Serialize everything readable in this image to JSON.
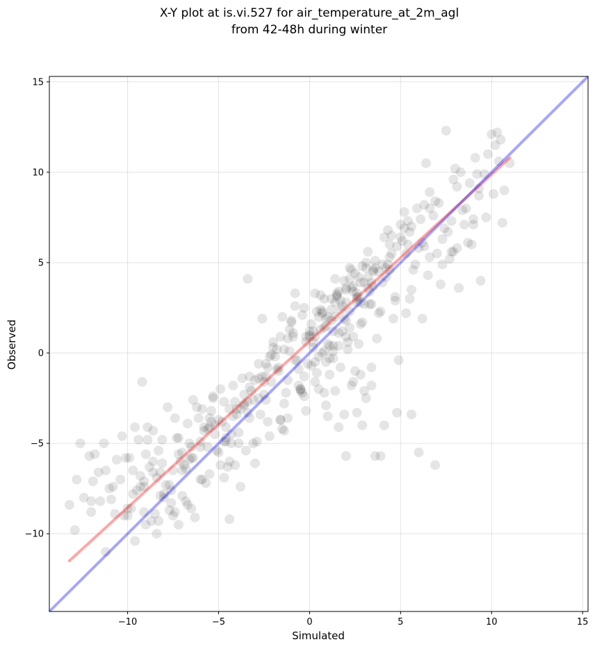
{
  "chart_data": {
    "type": "scatter",
    "title_line1": "X-Y plot at is.vi.527 for air_temperature_at_2m_agl",
    "title_line2": "from 42-48h during winter",
    "xlabel": "Simulated",
    "ylabel": "Observed",
    "xlim": [
      -14.3,
      15.3
    ],
    "ylim": [
      -14.3,
      15.3
    ],
    "xticks": [
      -10,
      -5,
      0,
      5,
      10,
      15
    ],
    "yticks": [
      -10,
      -5,
      0,
      5,
      10,
      15
    ],
    "xtick_labels": [
      "−10",
      "−5",
      "0",
      "5",
      "10",
      "15"
    ],
    "ytick_labels": [
      "−10",
      "−5",
      "0",
      "5",
      "10",
      "15"
    ],
    "grid": true,
    "point_color": "#000000",
    "point_opacity": 0.1,
    "regression_line": {
      "color": "#ff0000",
      "opacity": 0.35,
      "x": [
        -13.2,
        11.0
      ],
      "y": [
        -11.5,
        10.8
      ]
    },
    "identity_line": {
      "color": "#0000ff",
      "opacity": 0.35,
      "x": [
        -14.3,
        15.3
      ],
      "y": [
        -14.3,
        15.3
      ]
    },
    "series": [
      {
        "x": [
          -13.2,
          -12.9,
          -12.6,
          -12.4,
          -12.1,
          -11.9,
          -11.6,
          -11.3,
          -11.0,
          -10.6,
          -10.3,
          -10.0,
          -9.7,
          -9.4,
          -9.1,
          -8.8,
          -8.6,
          -8.3,
          -8.0,
          -7.8,
          -7.5,
          -7.2,
          -7.0,
          -6.7,
          -6.4,
          -6.1,
          -5.9,
          -5.6,
          -5.3,
          -5.0,
          -4.8,
          -4.5,
          -4.2,
          -3.9,
          -3.7,
          -3.4,
          -3.1,
          -2.8,
          -2.5,
          -2.2,
          -2.0,
          -1.7,
          -1.4,
          -1.1,
          -0.8,
          -0.5,
          -0.3,
          0.0,
          0.3,
          0.6,
          0.9,
          1.1,
          1.4,
          1.7,
          2.0,
          2.3,
          2.6,
          2.9,
          3.2,
          3.5,
          3.8,
          4.1,
          4.4,
          4.7,
          5.0,
          5.3,
          5.6,
          5.9,
          6.2,
          6.5,
          6.9,
          7.3,
          7.7,
          8.1,
          8.5,
          8.9,
          9.3,
          9.7,
          10.1,
          10.4,
          10.7,
          11.0,
          -12.8,
          -12.0,
          -11.2,
          -11.8,
          -10.9,
          -10.2,
          -9.9,
          -9.1,
          -8.9,
          -8.2,
          -7.6,
          -7.3,
          -6.6,
          -6.2,
          -5.7,
          -5.2,
          -4.9,
          -4.4,
          -4.0,
          -3.3,
          -2.9,
          -2.4,
          -1.9,
          -1.6,
          -1.2,
          -0.9,
          -0.4,
          0.1,
          0.5,
          0.8,
          1.2,
          1.6,
          1.9,
          2.2,
          2.7,
          3.1,
          3.4,
          3.9,
          4.3,
          4.8,
          5.2,
          5.7,
          6.1,
          6.6,
          7.1,
          7.6,
          8.0,
          8.6,
          9.2,
          9.8,
          10.3,
          -11.5,
          -10.7,
          -9.5,
          -8.7,
          -7.9,
          -7.1,
          -6.8,
          -6.0,
          -5.5,
          -4.6,
          -4.1,
          -3.5,
          -2.7,
          -2.1,
          -1.5,
          -0.7,
          -0.2,
          0.4,
          1.0,
          1.3,
          1.8,
          2.4,
          2.8,
          3.3,
          3.7,
          4.2,
          4.6,
          5.1,
          5.5,
          6.0,
          6.8,
          7.4,
          7.9,
          8.4,
          9.0,
          9.6,
          10.2,
          -9.6,
          -9.0,
          -8.4,
          -7.7,
          -6.9,
          -6.3,
          -5.8,
          -5.4,
          -4.7,
          -4.3,
          -3.8,
          -3.2,
          -2.6,
          -2.3,
          -1.8,
          -1.3,
          -1.0,
          -0.6,
          0.2,
          0.7,
          1.1,
          1.5,
          2.1,
          2.5,
          3.0,
          3.6,
          4.0,
          4.5,
          5.4,
          5.8,
          6.3,
          7.0,
          7.8,
          8.3,
          8.8,
          -10.1,
          -9.3,
          -8.1,
          -7.4,
          -6.5,
          -5.1,
          -4.4,
          -3.6,
          -3.0,
          -2.4,
          -1.6,
          -0.9,
          -0.1,
          0.6,
          1.4,
          2.0,
          2.7,
          3.5,
          4.3,
          5.2,
          6.4,
          7.5,
          0.1,
          0.4,
          0.8,
          1.0,
          1.2,
          1.5,
          1.8,
          2.1,
          2.4,
          2.7,
          3.0,
          3.3,
          2.9,
          2.6,
          2.2,
          1.7,
          1.3,
          0.9,
          0.5,
          -0.2,
          -11.2,
          -10.0,
          -8.9,
          -8.4,
          -7.4,
          -6.6,
          -5.3,
          -4.7,
          -3.9,
          -3.3,
          -2.5,
          -1.4,
          -0.5,
          0.3,
          1.6,
          2.5,
          3.6,
          4.9,
          6.6,
          7.9,
          9.1,
          -12.0,
          -10.8,
          -9.8,
          -9.2,
          -8.6,
          -7.0,
          -6.4,
          -5.9,
          -5.0,
          -4.1,
          -3.6,
          -2.0,
          -1.2,
          -0.3,
          1.0,
          2.3,
          3.1,
          4.1,
          5.6,
          6.9,
          8.7,
          10.0,
          0.5,
          1.1,
          1.9,
          2.6,
          3.2,
          2.2,
          1.4,
          0.7,
          0.0,
          -0.6,
          1.7,
          2.8,
          3.4,
          2.0,
          1.2,
          0.3,
          -0.8,
          -1.5,
          -2.6,
          -3.4,
          -4.6,
          -5.6,
          -6.8,
          -7.7,
          -8.5,
          -9.6,
          -8.0,
          -7.2,
          -6.0,
          -5.5,
          -4.3,
          -3.0,
          -2.1,
          0.9,
          1.9,
          2.9,
          3.9,
          4.8,
          6.0,
          7.3,
          8.2,
          9.4,
          10.6,
          -9.0,
          -8.3,
          -7.5,
          -6.7,
          -5.8,
          -4.9,
          -3.8,
          -2.8,
          -1.7,
          0.2,
          1.3,
          2.4,
          3.4,
          4.4,
          5.3,
          6.2,
          7.2,
          8.1,
          9.0,
          -5.2,
          -4.6,
          -4.0,
          -3.4,
          -2.8,
          -2.2,
          -1.6,
          -1.0,
          -0.4,
          0.2,
          0.8,
          1.4,
          2.0,
          2.6,
          3.2,
          3.8,
          4.4,
          5.0,
          5.6,
          -4.7,
          -4.2,
          -3.6,
          -3.1,
          -2.4,
          -1.8,
          -1.1,
          -0.2,
          0.6,
          1.5,
          2.3,
          3.1,
          4.0,
          4.7,
          5.5,
          6.3,
          -10.4,
          -9.7,
          -9.1,
          -8.6,
          -8.1,
          -7.6,
          -7.0,
          -6.5,
          -6.0,
          -5.4,
          0.0,
          0.7,
          1.3,
          2.0,
          2.8,
          3.6,
          4.5,
          5.4,
          6.6,
          7.8,
          9.3,
          10.5,
          -1.4,
          -0.8,
          -0.3,
          0.3,
          0.9,
          1.6,
          2.2,
          2.8,
          3.5,
          4.2,
          2.0,
          2.6,
          3.0,
          3.4,
          2.4,
          1.6,
          0.8,
          -0.5,
          -1.2,
          -2.3,
          -3.3,
          -4.4,
          -5.5,
          -6.5,
          -7.2,
          -8.2,
          -9.3
        ],
        "y": [
          -8.4,
          -9.8,
          -5.0,
          -8.0,
          -5.7,
          -7.1,
          -6.6,
          -5.0,
          -7.5,
          -5.9,
          -4.6,
          -8.6,
          -6.5,
          -4.8,
          -8.8,
          -6.3,
          -4.3,
          -5.4,
          -7.8,
          -3.0,
          -6.5,
          -4.7,
          -7.9,
          -3.9,
          -5.8,
          -3.6,
          -7.0,
          -4.2,
          -2.5,
          -5.5,
          -3.8,
          -6.3,
          -1.8,
          -4.4,
          -1.4,
          -3.3,
          -5.0,
          -0.6,
          -2.3,
          -4.6,
          0.6,
          -1.0,
          -2.8,
          1.3,
          -0.4,
          -2.0,
          2.5,
          0.9,
          -1.6,
          3.2,
          1.5,
          -0.3,
          4.1,
          2.4,
          0.9,
          4.6,
          3.1,
          1.7,
          5.6,
          3.7,
          2.2,
          6.4,
          4.6,
          2.9,
          7.1,
          5.5,
          3.5,
          8.0,
          6.1,
          4.3,
          8.4,
          6.3,
          5.2,
          9.2,
          7.1,
          6.0,
          8.7,
          7.5,
          8.8,
          10.6,
          9.0,
          10.5,
          -7.0,
          -8.8,
          -6.5,
          -5.6,
          -8.1,
          -9.0,
          -5.8,
          -7.4,
          -4.1,
          -6.6,
          -8.3,
          -4.7,
          -5.9,
          -3.0,
          -7.2,
          -4.0,
          -2.0,
          -6.0,
          -3.4,
          -1.3,
          -4.9,
          -2.6,
          -0.2,
          -3.7,
          -1.5,
          0.9,
          -2.2,
          -0.7,
          2.0,
          0.1,
          3.0,
          1.1,
          4.0,
          2.3,
          3.1,
          5.0,
          3.9,
          2.3,
          4.9,
          5.9,
          6.9,
          4.6,
          7.4,
          5.3,
          8.3,
          6.7,
          10.2,
          8.0,
          9.9,
          11.0,
          12.2,
          -8.2,
          -8.9,
          -7.6,
          -9.3,
          -7.3,
          -6.0,
          -8.2,
          -5.2,
          -6.7,
          -4.9,
          -2.7,
          -5.4,
          -3.4,
          -1.6,
          -4.2,
          -0.4,
          0.6,
          -1.1,
          2.0,
          0.4,
          1.2,
          3.4,
          1.6,
          2.7,
          0.8,
          4.2,
          1.9,
          6.2,
          3.0,
          5.8,
          7.6,
          6.9,
          5.6,
          7.9,
          7.1,
          9.9,
          11.5,
          -4.1,
          -5.6,
          -6.9,
          -7.3,
          -6.2,
          -9.1,
          -4.3,
          -3.2,
          -2.7,
          -5.0,
          -7.4,
          -2.1,
          -1.3,
          -3.8,
          0.2,
          -2.2,
          1.8,
          -0.9,
          0.3,
          2.2,
          -1.2,
          3.1,
          0.6,
          4.4,
          2.7,
          5.1,
          3.9,
          6.5,
          7.3,
          4.9,
          8.2,
          5.5,
          7.3,
          10.0,
          9.4,
          -5.8,
          -6.8,
          -4.8,
          -3.6,
          -8.6,
          -5.4,
          -9.2,
          -2.8,
          -6.1,
          -0.6,
          -3.7,
          1.1,
          -0.6,
          2.4,
          -2.1,
          3.6,
          0.5,
          4.6,
          6.8,
          7.8,
          10.5,
          12.3,
          1.6,
          2.3,
          3.0,
          0.5,
          1.8,
          3.3,
          2.6,
          0.2,
          3.7,
          4.2,
          3.9,
          3.4,
          4.8,
          2.8,
          1.4,
          2.9,
          0.1,
          -0.5,
          -2.0,
          -3.2,
          -11.0,
          -9.0,
          -4.8,
          -10.0,
          -8.8,
          -5.0,
          -2.4,
          -6.9,
          -5.0,
          -3.6,
          -1.6,
          -4.3,
          -2.1,
          -0.5,
          -4.1,
          -1.0,
          -5.7,
          -0.4,
          8.9,
          9.6,
          10.8,
          -8.2,
          -7.4,
          -8.6,
          -1.6,
          -6.0,
          -5.5,
          -2.6,
          -3.1,
          -3.7,
          -6.2,
          -2.3,
          0.3,
          -3.6,
          -2.4,
          -3.5,
          -1.8,
          -2.5,
          -4.0,
          -3.4,
          -6.2,
          6.1,
          12.1,
          -0.2,
          0.4,
          1.9,
          3.3,
          3.6,
          4.1,
          2.8,
          0.0,
          1.2,
          -1.8,
          -0.8,
          -1.2,
          -1.8,
          1.8,
          2.4,
          3.3,
          3.3,
          2.0,
          1.9,
          4.1,
          -4.1,
          -5.2,
          -6.4,
          -8.7,
          -8.9,
          -10.4,
          -8.0,
          -9.5,
          -7.0,
          -3.6,
          -4.5,
          -1.5,
          -0.1,
          -2.9,
          -3.4,
          -4.0,
          -5.7,
          -3.3,
          -5.5,
          4.9,
          3.6,
          4.0,
          7.2,
          -9.5,
          -9.3,
          -9.0,
          -8.4,
          -4.1,
          -6.2,
          -3.1,
          -2.5,
          -0.8,
          1.2,
          -0.3,
          0.9,
          2.7,
          6.0,
          2.2,
          1.9,
          3.8,
          5.8,
          7.4,
          -4.5,
          -4.7,
          -3.1,
          -2.7,
          -1.4,
          -0.2,
          0.9,
          1.7,
          2.1,
          0.6,
          1.4,
          2.0,
          2.8,
          3.0,
          4.2,
          4.5,
          5.3,
          6.4,
          7.0,
          -4.9,
          -3.5,
          -2.9,
          -2.6,
          -1.3,
          -0.9,
          0.1,
          0.9,
          1.3,
          3.2,
          3.6,
          4.7,
          4.9,
          3.1,
          6.7,
          5.9,
          -7.0,
          -7.8,
          -7.1,
          -6.6,
          -6.1,
          -7.6,
          -6.5,
          -5.2,
          -4.9,
          -3.8,
          1.0,
          2.3,
          1.2,
          3.5,
          2.8,
          4.7,
          5.5,
          6.0,
          8.0,
          5.6,
          9.1,
          11.8,
          0.2,
          2.6,
          -1.3,
          0.9,
          1.9,
          3.4,
          4.7,
          3.9,
          4.5,
          4.7,
          -5.7,
          -3.3,
          -2.1,
          -0.8,
          -1.6,
          0.4,
          -2.2,
          -2.0,
          0.8,
          -0.8,
          -1.9,
          -3.1,
          -4.1,
          -5.8,
          -5.6,
          -7.9,
          -7.4
        ]
      }
    ]
  }
}
